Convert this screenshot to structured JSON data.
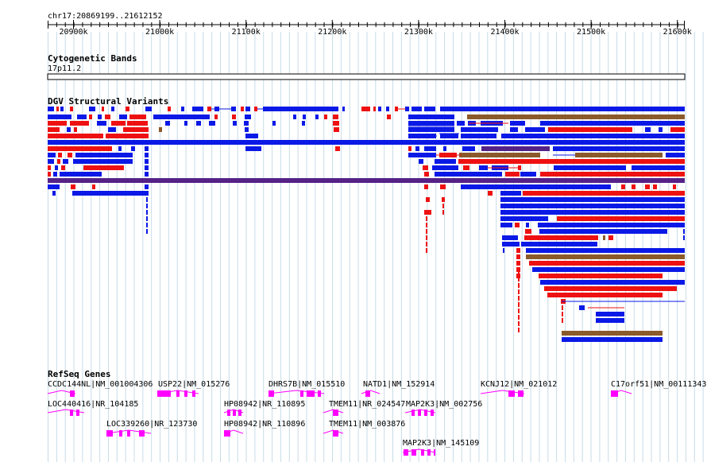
{
  "browser": {
    "location_label": "chr17:20869199..21612152",
    "ruler_ticks": [
      "20900k",
      "21000k",
      "21100k",
      "21200k",
      "21300k",
      "21400k",
      "21500k",
      "21600k"
    ]
  },
  "tracks": {
    "cytoband": {
      "title": "Cytogenetic Bands",
      "band": "17p11.2"
    },
    "dgv": {
      "title": "DGV Structural Variants"
    },
    "refseq": {
      "title": "RefSeq Genes",
      "genes": [
        "CCDC144NL|NM_001004306",
        "USP22|NM_015276",
        "DHRS7B|NM_015510",
        "NATD1|NM_152914",
        "KCNJ12|NM_021012",
        "C17orf51|NM_00111343",
        "LOC440416|NR_104185",
        "HP08942|NR_110895",
        "TMEM11|NR_024547",
        "MAP2K3|NM_002756",
        "LOC339260|NR_123730",
        "HP08942|NR_110896",
        "TMEM11|NM_003876",
        "MAP2K3|NM_145109"
      ]
    }
  },
  "colors": {
    "loss": "#0a19e6",
    "gain": "#ee1111",
    "both": "#8b5a2b",
    "inversion": "#552288",
    "gene": "#ff00ff",
    "grid": "#c8dce8"
  }
}
